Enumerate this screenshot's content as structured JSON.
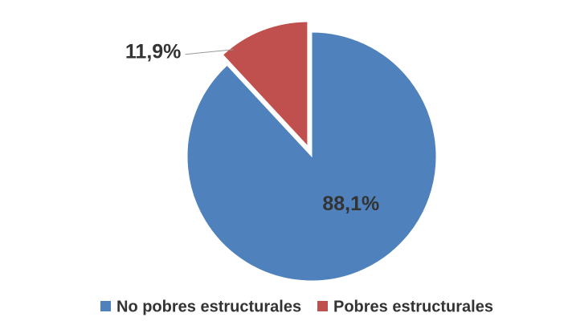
{
  "chart_data": {
    "type": "pie",
    "categories": [
      "No pobres estructurales",
      "Pobres estructurales"
    ],
    "values": [
      88.1,
      11.9
    ],
    "value_labels": [
      "88,1%",
      "11,9%"
    ],
    "colors": [
      "#4f81bd",
      "#c0504d"
    ],
    "legend": "bottom"
  }
}
